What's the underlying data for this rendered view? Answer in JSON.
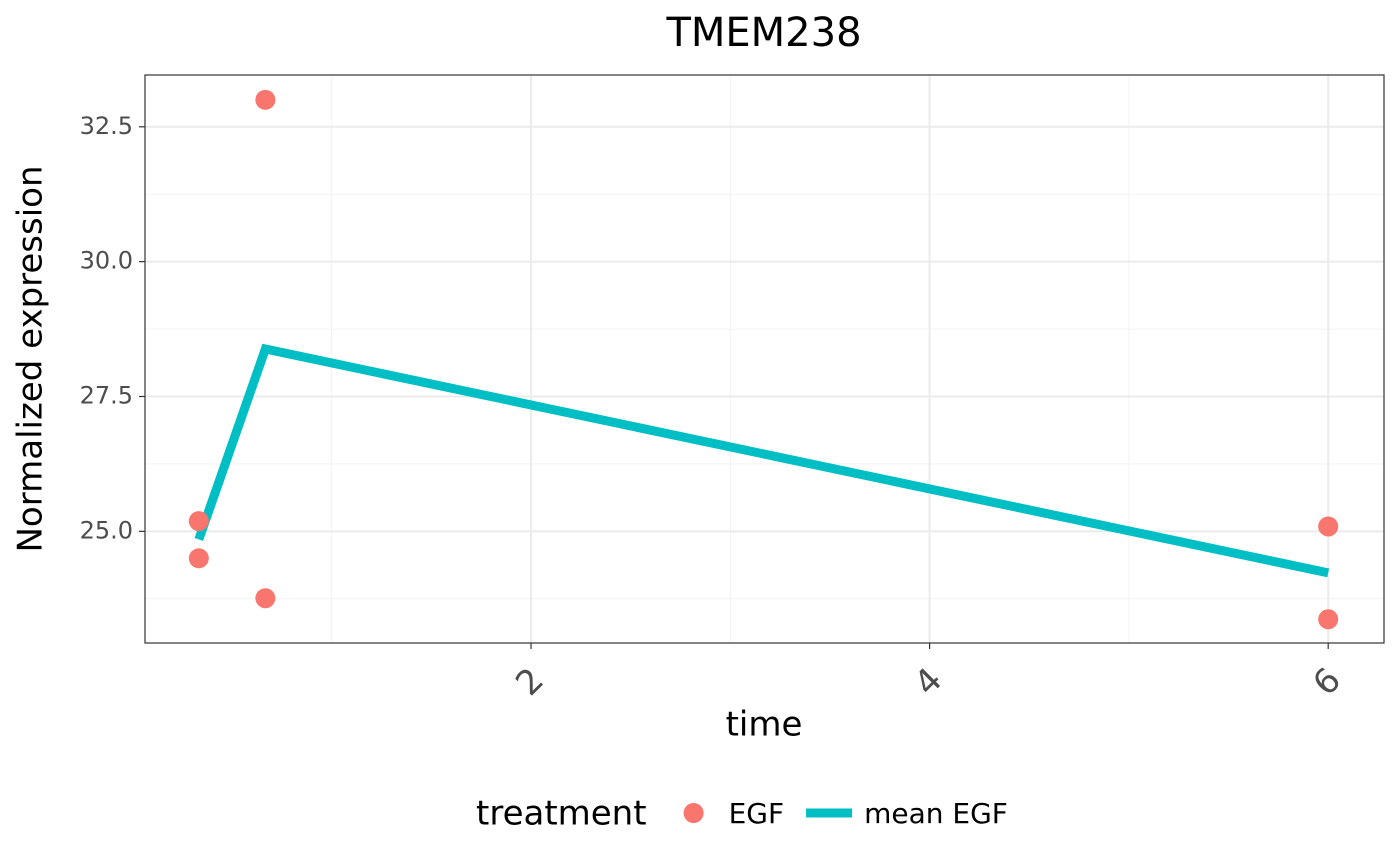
{
  "chart_data": {
    "type": "line",
    "title": "TMEM238",
    "x_label": "time",
    "y_label": "Normalized expression",
    "legend_title": "treatment",
    "legend_position": "bottom",
    "grid": true,
    "minor_grid": true,
    "xlim": [
      0.063,
      6.28
    ],
    "ylim": [
      22.93,
      33.46
    ],
    "xticks": [
      2,
      4,
      6
    ],
    "yticks": [
      {
        "value": 25,
        "label": "25.0"
      },
      27.5,
      {
        "value": 30,
        "label": "30.0"
      },
      32.5
    ],
    "series": [
      {
        "name": "EGF",
        "type": "scatter",
        "color": "#F8766D",
        "x": [
          0.333,
          0.333,
          0.667,
          0.667,
          6,
          6
        ],
        "values": [
          25.19,
          24.5,
          33.0,
          23.76,
          25.09,
          23.37
        ]
      },
      {
        "name": "mean EGF",
        "type": "line",
        "color": "#00BFC4",
        "x": [
          0.333,
          0.667,
          6
        ],
        "values": [
          24.85,
          28.38,
          24.23
        ]
      }
    ]
  }
}
